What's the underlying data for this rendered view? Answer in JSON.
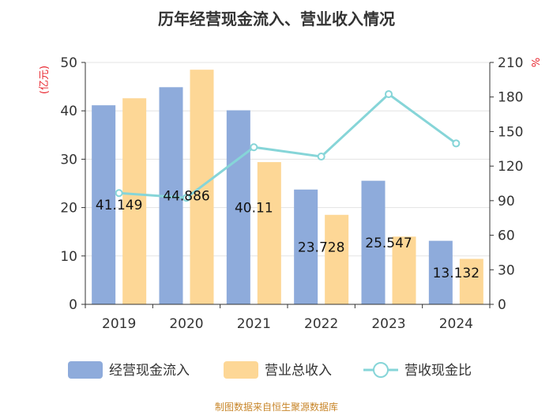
{
  "title": "历年经营现金流入、营业收入情况",
  "footer": "制图数据来自恒生聚源数据库",
  "chart_data": {
    "type": "bar",
    "title": "历年经营现金流入、营业收入情况",
    "categories": [
      "2019",
      "2020",
      "2021",
      "2022",
      "2023",
      "2024"
    ],
    "series": [
      {
        "name": "经营现金流入",
        "type": "bar",
        "axis": "left",
        "color": "#8eabdb",
        "values": [
          41.149,
          44.886,
          40.11,
          23.728,
          25.547,
          13.132
        ]
      },
      {
        "name": "营业总收入",
        "type": "bar",
        "axis": "left",
        "color": "#fdd796",
        "values": [
          42.6,
          48.5,
          29.4,
          18.5,
          14.0,
          9.4
        ]
      },
      {
        "name": "营收现金比",
        "type": "line",
        "axis": "right",
        "color": "#86d5d8",
        "values": [
          96.6,
          92.5,
          136.4,
          128.3,
          182.5,
          139.7
        ]
      }
    ],
    "data_labels": [
      "41.149",
      "44.886",
      "40.11",
      "23.728",
      "25.547",
      "13.132"
    ],
    "left_axis": {
      "label": "(亿元)",
      "min": 0,
      "max": 50,
      "ticks": [
        0,
        10,
        20,
        30,
        40,
        50
      ]
    },
    "right_axis": {
      "label": "%",
      "min": 0,
      "max": 210,
      "ticks": [
        0,
        30,
        60,
        90,
        120,
        150,
        180,
        210
      ]
    },
    "legend": [
      "经营现金流入",
      "营业总收入",
      "营收现金比"
    ],
    "legend_position": "bottom",
    "grid": true
  }
}
